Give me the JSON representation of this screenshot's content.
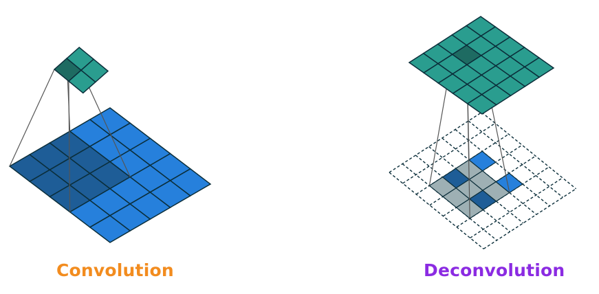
{
  "captions": {
    "convolution": "Convolution",
    "deconvolution": "Deconvolution"
  },
  "colors": {
    "convolution_caption": "#F28C1F",
    "deconvolution_caption": "#8B2BE2",
    "input_blue": "#2680DC",
    "input_blue_dark": "#1E5D97",
    "output_teal": "#2A9D8F",
    "output_teal_dark": "#1E6B62",
    "padding_gray": "#9EB0B4",
    "grid_line": "#0B2E3A"
  },
  "convolution": {
    "input_grid": {
      "rows": 5,
      "cols": 5
    },
    "kernel_window": {
      "rows": 3,
      "cols": 3
    },
    "output_grid": {
      "rows": 2,
      "cols": 2
    },
    "highlighted_output": [
      0,
      0
    ]
  },
  "deconvolution": {
    "input_grid": {
      "rows": 7,
      "cols": 7,
      "style": "dashed"
    },
    "active_cells": [
      [
        2,
        2
      ],
      [
        2,
        4
      ],
      [
        4,
        2
      ],
      [
        4,
        4
      ]
    ],
    "kernel_window": {
      "rows": 3,
      "cols": 3
    },
    "output_grid": {
      "rows": 5,
      "cols": 5
    },
    "highlighted_output": [
      1,
      2
    ]
  }
}
